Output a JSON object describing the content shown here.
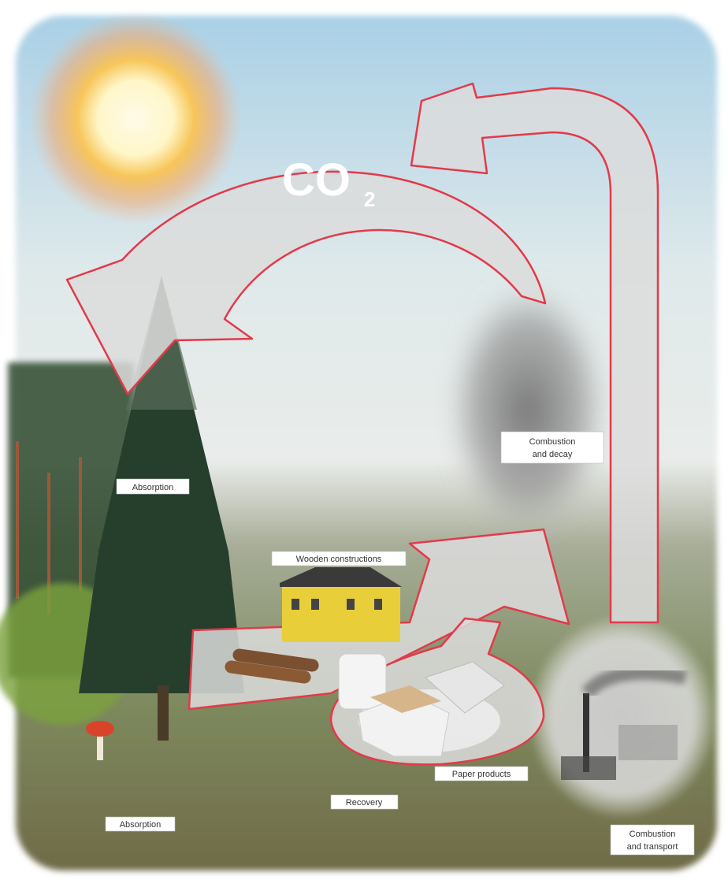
{
  "co2": {
    "main": "CO",
    "subscript": "2"
  },
  "labels": {
    "combustion_decay": [
      "Combustion",
      "and decay"
    ],
    "absorption_tree": "Absorption",
    "wooden_constructions": "Wooden constructions",
    "paper_products": "Paper products",
    "recovery": "Recovery",
    "absorption_ground": "Absorption",
    "combustion_transport": [
      "Combustion",
      "and transport"
    ]
  }
}
